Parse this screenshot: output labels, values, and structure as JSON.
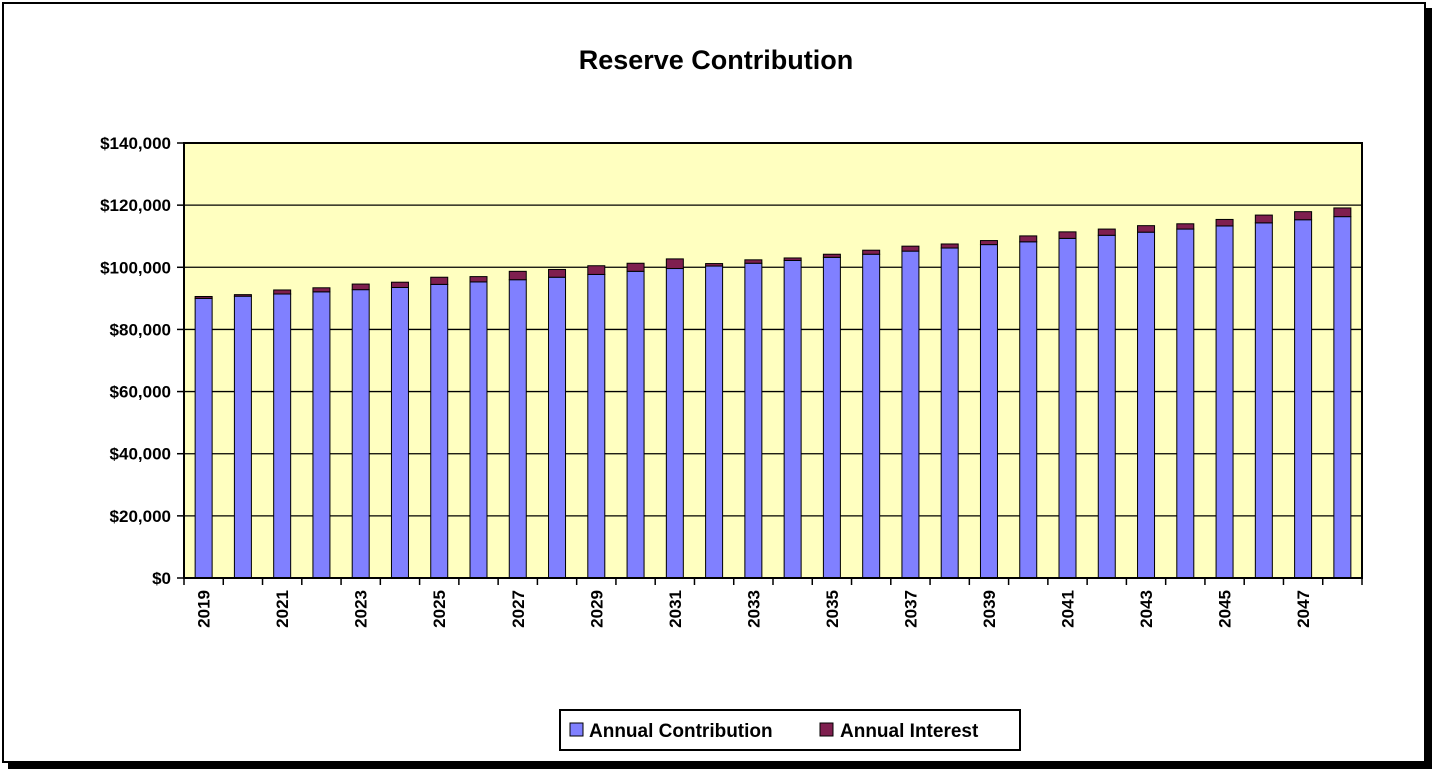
{
  "chart_data": {
    "type": "bar",
    "stacked": true,
    "title": "Reserve Contribution",
    "xlabel": "",
    "ylabel": "",
    "ylim": [
      0,
      140000
    ],
    "yticks": [
      0,
      20000,
      40000,
      60000,
      80000,
      100000,
      120000,
      140000
    ],
    "ytick_labels": [
      "$0",
      "$20,000",
      "$40,000",
      "$60,000",
      "$80,000",
      "$100,000",
      "$120,000",
      "$140,000"
    ],
    "categories": [
      "2019",
      "2020",
      "2021",
      "2022",
      "2023",
      "2024",
      "2025",
      "2026",
      "2027",
      "2028",
      "2029",
      "2030",
      "2031",
      "2032",
      "2033",
      "2034",
      "2035",
      "2036",
      "2037",
      "2038",
      "2039",
      "2040",
      "2041",
      "2042",
      "2043",
      "2044",
      "2045",
      "2046",
      "2047",
      "2048"
    ],
    "xtick_labels": [
      "2019",
      "",
      "2021",
      "",
      "2023",
      "",
      "2025",
      "",
      "2027",
      "",
      "2029",
      "",
      "2031",
      "",
      "2033",
      "",
      "2035",
      "",
      "2037",
      "",
      "2039",
      "",
      "2041",
      "",
      "2043",
      "",
      "2045",
      "",
      "2047",
      ""
    ],
    "series": [
      {
        "name": "Annual Contribution",
        "color": "#8080ff",
        "values": [
          90000,
          90700,
          91400,
          92100,
          92800,
          93500,
          94500,
          95300,
          96000,
          96800,
          97700,
          98700,
          99600,
          100400,
          101300,
          102200,
          103200,
          104200,
          105200,
          106200,
          107300,
          108200,
          109300,
          110300,
          111300,
          112300,
          113300,
          114300,
          115300,
          116300
        ]
      },
      {
        "name": "Annual Interest",
        "color": "#7f1f4f",
        "values": [
          600,
          500,
          1300,
          1300,
          1800,
          1700,
          2300,
          1700,
          2700,
          2500,
          2800,
          2600,
          3100,
          800,
          1100,
          800,
          1000,
          1300,
          1600,
          1300,
          1300,
          1900,
          2100,
          2000,
          2100,
          1700,
          2100,
          2500,
          2600,
          2800
        ]
      }
    ],
    "legend_position": "bottom",
    "plot_background": "#ffffc0",
    "grid": true
  }
}
